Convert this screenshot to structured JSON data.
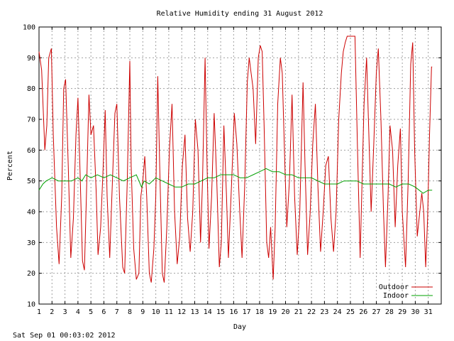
{
  "chart_data": {
    "type": "line",
    "title": "Relative Humidity ending 31 August 2012",
    "xlabel": "Day",
    "ylabel": "Percent",
    "xlim": [
      1,
      32
    ],
    "ylim": [
      10,
      100
    ],
    "x_ticks": [
      "1",
      "2",
      "3",
      "4",
      "5",
      "6",
      "7",
      "8",
      "9",
      "10",
      "11",
      "12",
      "13",
      "14",
      "15",
      "16",
      "17",
      "18",
      "19",
      "20",
      "21",
      "22",
      "23",
      "24",
      "25",
      "26",
      "27",
      "28",
      "29",
      "30",
      "31"
    ],
    "y_ticks": [
      10,
      20,
      30,
      40,
      50,
      60,
      70,
      80,
      90,
      100
    ],
    "grid": true,
    "legend_position": "bottom-right",
    "series": [
      {
        "name": "Outdoor",
        "color": "#cc0000",
        "points": [
          [
            1.0,
            92
          ],
          [
            1.2,
            86
          ],
          [
            1.45,
            60
          ],
          [
            1.6,
            68
          ],
          [
            1.75,
            90
          ],
          [
            1.95,
            93
          ],
          [
            2.1,
            65
          ],
          [
            2.35,
            35
          ],
          [
            2.55,
            23
          ],
          [
            2.75,
            45
          ],
          [
            2.9,
            80
          ],
          [
            3.05,
            83
          ],
          [
            3.25,
            55
          ],
          [
            3.45,
            25
          ],
          [
            3.65,
            38
          ],
          [
            3.85,
            65
          ],
          [
            4.0,
            77
          ],
          [
            4.15,
            55
          ],
          [
            4.35,
            24
          ],
          [
            4.5,
            21
          ],
          [
            4.65,
            45
          ],
          [
            4.85,
            78
          ],
          [
            5.0,
            65
          ],
          [
            5.2,
            68
          ],
          [
            5.4,
            47
          ],
          [
            5.55,
            26
          ],
          [
            5.75,
            35
          ],
          [
            5.95,
            55
          ],
          [
            6.1,
            73
          ],
          [
            6.25,
            45
          ],
          [
            6.45,
            25
          ],
          [
            6.6,
            43
          ],
          [
            6.85,
            72
          ],
          [
            7.0,
            75
          ],
          [
            7.2,
            45
          ],
          [
            7.45,
            22
          ],
          [
            7.6,
            20
          ],
          [
            7.8,
            50
          ],
          [
            8.0,
            89
          ],
          [
            8.1,
            55
          ],
          [
            8.3,
            28
          ],
          [
            8.5,
            18
          ],
          [
            8.7,
            20
          ],
          [
            8.85,
            45
          ],
          [
            9.0,
            50
          ],
          [
            9.15,
            58
          ],
          [
            9.3,
            45
          ],
          [
            9.5,
            20
          ],
          [
            9.65,
            17
          ],
          [
            9.85,
            28
          ],
          [
            10.0,
            45
          ],
          [
            10.15,
            84
          ],
          [
            10.3,
            55
          ],
          [
            10.5,
            20
          ],
          [
            10.65,
            17
          ],
          [
            10.85,
            35
          ],
          [
            11.05,
            60
          ],
          [
            11.25,
            75
          ],
          [
            11.45,
            40
          ],
          [
            11.65,
            23
          ],
          [
            11.85,
            32
          ],
          [
            12.05,
            55
          ],
          [
            12.25,
            65
          ],
          [
            12.45,
            38
          ],
          [
            12.65,
            27
          ],
          [
            12.85,
            40
          ],
          [
            13.05,
            70
          ],
          [
            13.25,
            60
          ],
          [
            13.45,
            30
          ],
          [
            13.6,
            50
          ],
          [
            13.8,
            90
          ],
          [
            13.95,
            55
          ],
          [
            14.1,
            28
          ],
          [
            14.3,
            45
          ],
          [
            14.5,
            72
          ],
          [
            14.7,
            50
          ],
          [
            14.9,
            22
          ],
          [
            15.05,
            30
          ],
          [
            15.25,
            68
          ],
          [
            15.45,
            45
          ],
          [
            15.6,
            25
          ],
          [
            15.85,
            50
          ],
          [
            16.05,
            72
          ],
          [
            16.25,
            62
          ],
          [
            16.45,
            42
          ],
          [
            16.65,
            25
          ],
          [
            16.85,
            48
          ],
          [
            17.05,
            82
          ],
          [
            17.2,
            90
          ],
          [
            17.35,
            85
          ],
          [
            17.5,
            80
          ],
          [
            17.7,
            62
          ],
          [
            17.9,
            90
          ],
          [
            18.05,
            94
          ],
          [
            18.2,
            92
          ],
          [
            18.35,
            68
          ],
          [
            18.55,
            30
          ],
          [
            18.7,
            25
          ],
          [
            18.85,
            35
          ],
          [
            19.05,
            18
          ],
          [
            19.2,
            35
          ],
          [
            19.4,
            75
          ],
          [
            19.6,
            90
          ],
          [
            19.75,
            85
          ],
          [
            19.95,
            55
          ],
          [
            20.1,
            35
          ],
          [
            20.3,
            50
          ],
          [
            20.5,
            78
          ],
          [
            20.7,
            45
          ],
          [
            20.9,
            26
          ],
          [
            21.1,
            40
          ],
          [
            21.35,
            82
          ],
          [
            21.5,
            55
          ],
          [
            21.7,
            26
          ],
          [
            21.9,
            40
          ],
          [
            22.1,
            62
          ],
          [
            22.3,
            75
          ],
          [
            22.5,
            48
          ],
          [
            22.7,
            27
          ],
          [
            22.9,
            40
          ],
          [
            23.1,
            55
          ],
          [
            23.3,
            58
          ],
          [
            23.5,
            38
          ],
          [
            23.7,
            27
          ],
          [
            23.9,
            40
          ],
          [
            24.1,
            70
          ],
          [
            24.3,
            85
          ],
          [
            24.45,
            92
          ],
          [
            24.6,
            95
          ],
          [
            24.75,
            97
          ],
          [
            25.35,
            97
          ],
          [
            25.55,
            60
          ],
          [
            25.75,
            25
          ],
          [
            25.9,
            50
          ],
          [
            26.05,
            75
          ],
          [
            26.25,
            90
          ],
          [
            26.4,
            68
          ],
          [
            26.6,
            40
          ],
          [
            26.8,
            62
          ],
          [
            27.0,
            85
          ],
          [
            27.15,
            93
          ],
          [
            27.35,
            70
          ],
          [
            27.55,
            40
          ],
          [
            27.7,
            22
          ],
          [
            27.9,
            45
          ],
          [
            28.05,
            68
          ],
          [
            28.25,
            60
          ],
          [
            28.45,
            35
          ],
          [
            28.65,
            55
          ],
          [
            28.85,
            67
          ],
          [
            29.0,
            40
          ],
          [
            29.25,
            22
          ],
          [
            29.45,
            50
          ],
          [
            29.65,
            88
          ],
          [
            29.8,
            95
          ],
          [
            29.95,
            60
          ],
          [
            30.15,
            32
          ],
          [
            30.35,
            40
          ],
          [
            30.5,
            46
          ],
          [
            30.65,
            40
          ],
          [
            30.8,
            22
          ],
          [
            30.95,
            38
          ],
          [
            31.1,
            65
          ],
          [
            31.25,
            87
          ],
          [
            31.3,
            87
          ]
        ]
      },
      {
        "name": "Indoor",
        "color": "#00a000",
        "points": [
          [
            1.0,
            47
          ],
          [
            1.3,
            49
          ],
          [
            1.55,
            50
          ],
          [
            2.0,
            51
          ],
          [
            2.5,
            50
          ],
          [
            3.0,
            50
          ],
          [
            3.5,
            50
          ],
          [
            4.0,
            51
          ],
          [
            4.3,
            50
          ],
          [
            4.6,
            52
          ],
          [
            5.0,
            51
          ],
          [
            5.5,
            52
          ],
          [
            6.0,
            51
          ],
          [
            6.5,
            52
          ],
          [
            7.0,
            51
          ],
          [
            7.5,
            50
          ],
          [
            8.0,
            51
          ],
          [
            8.5,
            52
          ],
          [
            8.9,
            48
          ],
          [
            9.1,
            50
          ],
          [
            9.5,
            49
          ],
          [
            10.0,
            51
          ],
          [
            10.5,
            50
          ],
          [
            11.0,
            49
          ],
          [
            11.5,
            48
          ],
          [
            12.0,
            48
          ],
          [
            12.5,
            49
          ],
          [
            13.0,
            49
          ],
          [
            13.5,
            50
          ],
          [
            14.0,
            51
          ],
          [
            14.5,
            51
          ],
          [
            15.0,
            52
          ],
          [
            15.5,
            52
          ],
          [
            16.0,
            52
          ],
          [
            16.5,
            51
          ],
          [
            17.0,
            51
          ],
          [
            17.5,
            52
          ],
          [
            18.0,
            53
          ],
          [
            18.5,
            54
          ],
          [
            19.0,
            53
          ],
          [
            19.5,
            53
          ],
          [
            20.0,
            52
          ],
          [
            20.5,
            52
          ],
          [
            21.0,
            51
          ],
          [
            21.5,
            51
          ],
          [
            22.0,
            51
          ],
          [
            22.5,
            50
          ],
          [
            23.0,
            49
          ],
          [
            23.5,
            49
          ],
          [
            24.0,
            49
          ],
          [
            24.5,
            50
          ],
          [
            25.0,
            50
          ],
          [
            25.5,
            50
          ],
          [
            26.0,
            49
          ],
          [
            26.5,
            49
          ],
          [
            27.0,
            49
          ],
          [
            27.5,
            49
          ],
          [
            28.0,
            49
          ],
          [
            28.5,
            48
          ],
          [
            29.0,
            49
          ],
          [
            29.5,
            49
          ],
          [
            30.0,
            48
          ],
          [
            30.3,
            47
          ],
          [
            30.6,
            46
          ],
          [
            31.0,
            47
          ],
          [
            31.3,
            47
          ]
        ]
      }
    ]
  },
  "timestamp": "Sat Sep 01 00:03:02 2012"
}
